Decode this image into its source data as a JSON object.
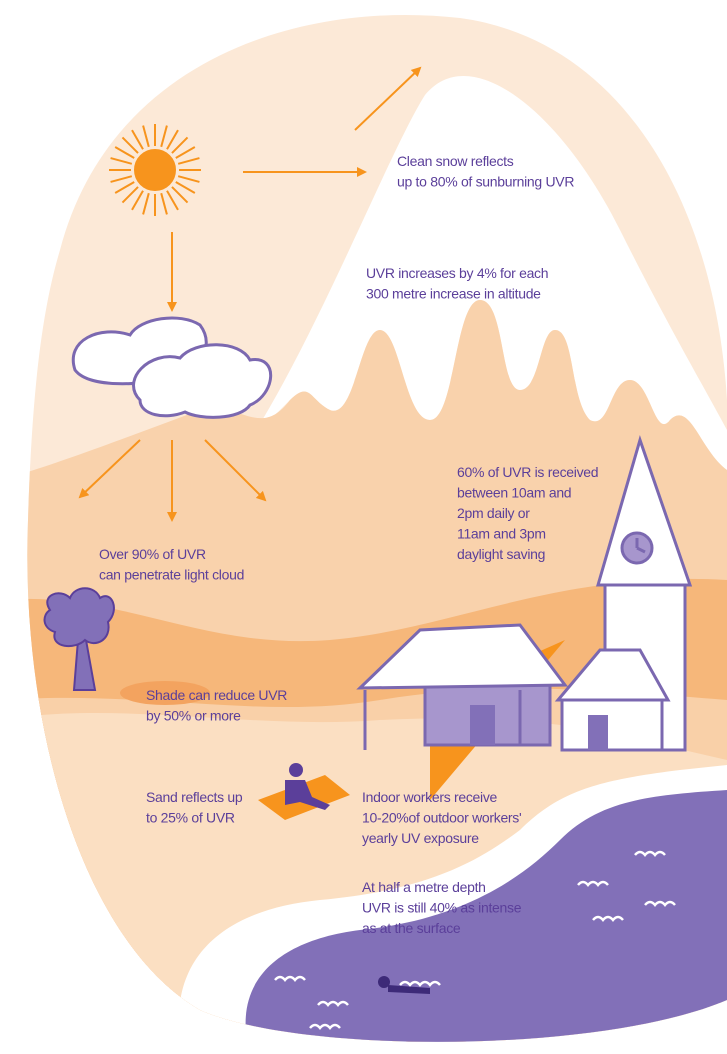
{
  "annotations": [
    {
      "lines": [
        "Clean snow reflects",
        "up to 80% of sunburning UVR"
      ]
    },
    {
      "lines": [
        "UVR increases by 4% for each",
        "300 metre increase in altitude"
      ]
    },
    {
      "lines": [
        "60% of UVR is received",
        "between 10am and",
        "2pm daily or",
        "11am and 3pm",
        "daylight saving"
      ]
    },
    {
      "lines": [
        "Over 90% of UVR",
        "can penetrate light cloud"
      ]
    },
    {
      "lines": [
        "Shade can reduce UVR",
        "by 50% or more"
      ]
    },
    {
      "lines": [
        "Sand reflects up",
        "to 25% of UVR"
      ]
    },
    {
      "lines": [
        "Indoor workers receive",
        "10-20%of outdoor workers'",
        "yearly UV exposure"
      ]
    },
    {
      "lines": [
        "At half a metre depth",
        "UVR is still 40% as intense",
        "as at the surface"
      ]
    }
  ]
}
